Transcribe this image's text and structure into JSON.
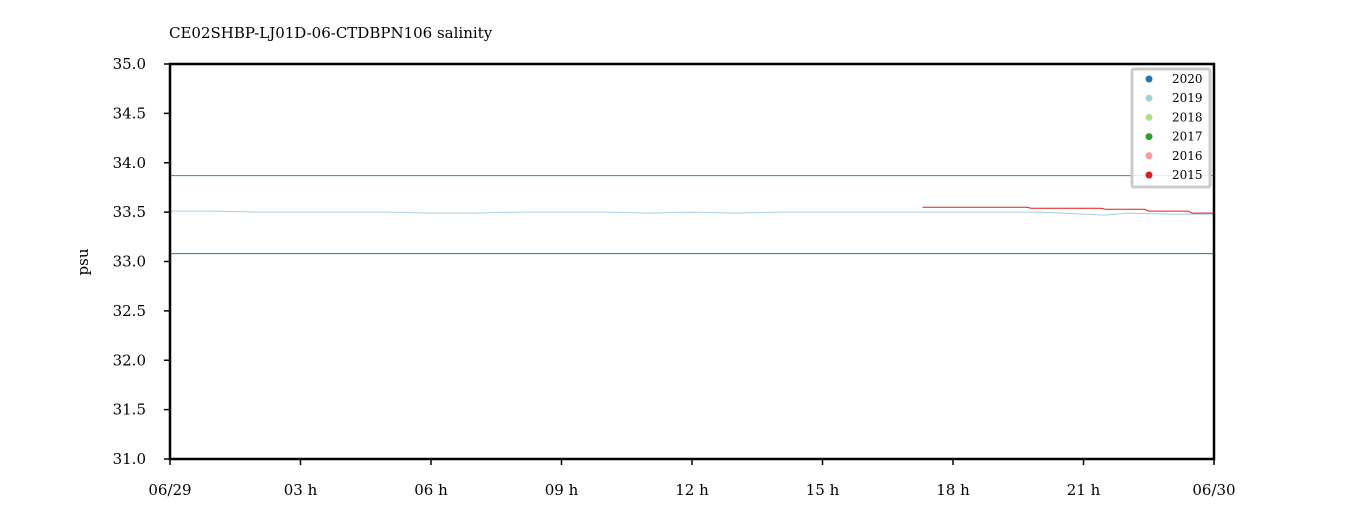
{
  "chart_data": {
    "type": "line",
    "title": "CE02SHBP-LJ01D-06-CTDBPN106 salinity",
    "ylabel": "psu",
    "ylim": [
      31.0,
      35.0
    ],
    "xlim_hours": [
      0,
      24
    ],
    "x_ticks": [
      {
        "hour": 0,
        "label": "06/29"
      },
      {
        "hour": 3,
        "label": "03 h"
      },
      {
        "hour": 6,
        "label": "06 h"
      },
      {
        "hour": 9,
        "label": "09 h"
      },
      {
        "hour": 12,
        "label": "12 h"
      },
      {
        "hour": 15,
        "label": "15 h"
      },
      {
        "hour": 18,
        "label": "18 h"
      },
      {
        "hour": 21,
        "label": "21 h"
      },
      {
        "hour": 24,
        "label": "06/30"
      }
    ],
    "y_ticks": [
      "31.0",
      "31.5",
      "32.0",
      "32.5",
      "33.0",
      "33.5",
      "34.0",
      "34.5",
      "35.0"
    ],
    "legend_position": "top-right",
    "series": [
      {
        "name": "2020",
        "color": "#1f77b4",
        "x": [
          0,
          24
        ],
        "values": [
          33.08,
          33.08
        ]
      },
      {
        "name": "2019",
        "color": "#a6cee3",
        "x": [
          0,
          1,
          2,
          3,
          4,
          5,
          6,
          7,
          8,
          9,
          10,
          11,
          12,
          13,
          14,
          15,
          16,
          17,
          18,
          19,
          20,
          21,
          21.5,
          22,
          23,
          24
        ],
        "values": [
          33.51,
          33.51,
          33.5,
          33.5,
          33.5,
          33.5,
          33.49,
          33.49,
          33.5,
          33.5,
          33.5,
          33.49,
          33.5,
          33.49,
          33.5,
          33.5,
          33.5,
          33.5,
          33.5,
          33.5,
          33.5,
          33.48,
          33.47,
          33.49,
          33.48,
          33.48
        ]
      },
      {
        "name": "2018",
        "color": "#b2df8a",
        "x": [],
        "values": []
      },
      {
        "name": "2017",
        "color": "#33a02c",
        "x": [
          0,
          24
        ],
        "values": [
          33.87,
          33.87
        ]
      },
      {
        "name": "2016",
        "color": "#fb9a99",
        "x": [],
        "values": []
      },
      {
        "name": "2015",
        "color": "#e31a1c",
        "x": [
          17.3,
          19.7,
          19.8,
          21.4,
          21.5,
          22.4,
          22.5,
          23.4,
          23.5,
          24
        ],
        "values": [
          33.55,
          33.55,
          33.54,
          33.54,
          33.53,
          33.53,
          33.51,
          33.51,
          33.49,
          33.49
        ]
      }
    ]
  }
}
